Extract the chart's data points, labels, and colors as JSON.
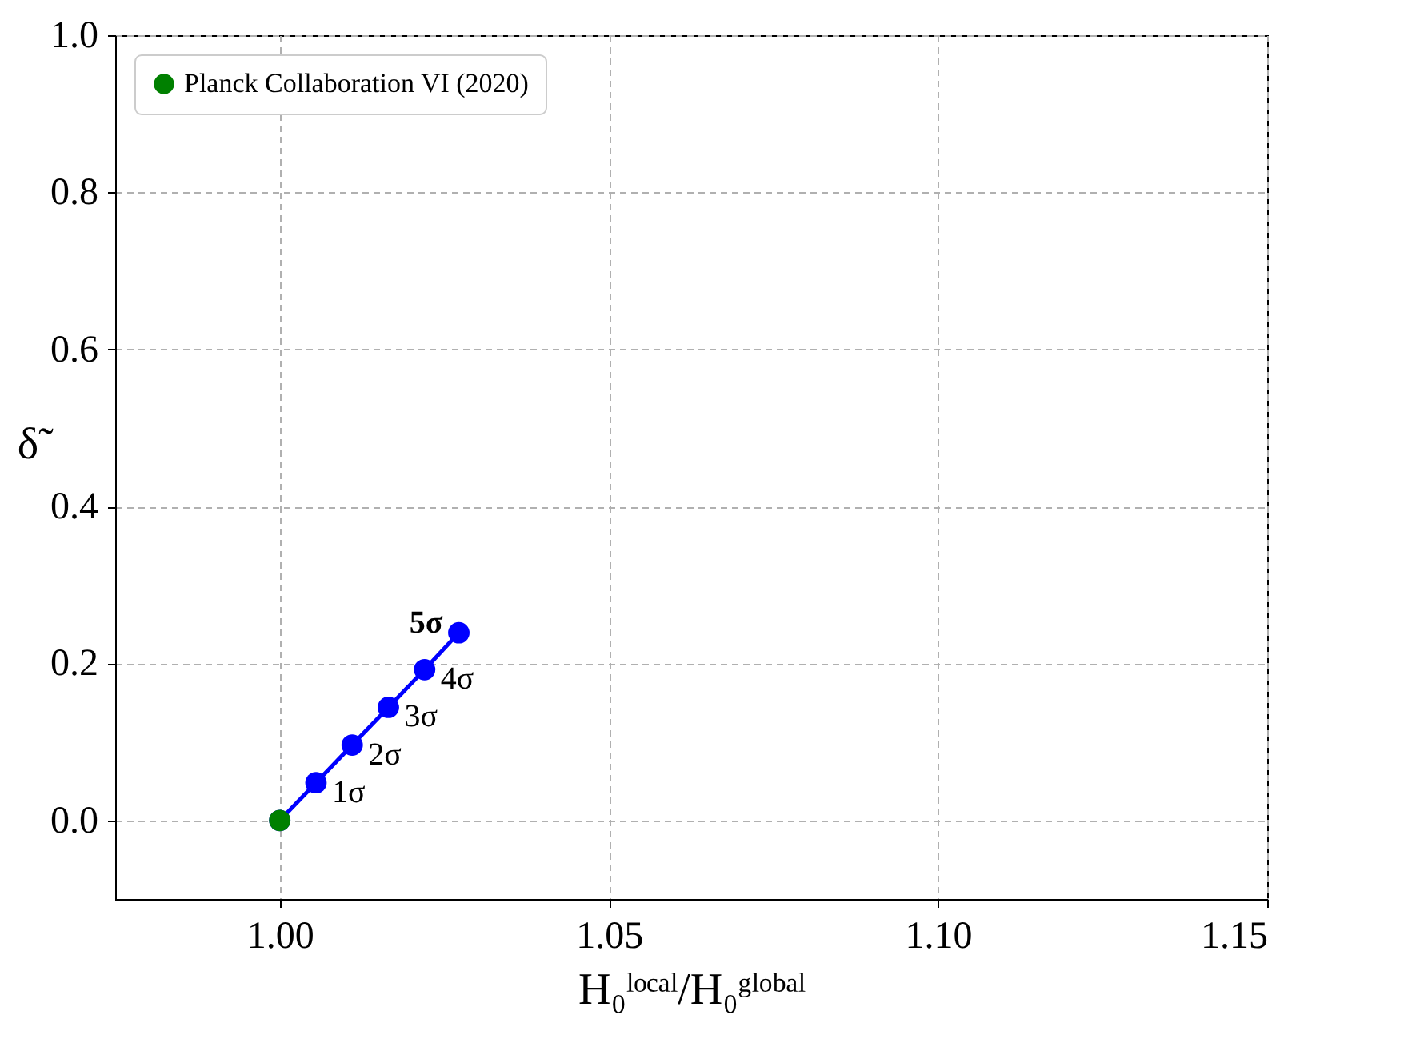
{
  "chart_data": {
    "type": "line",
    "xlabel": "H₀ˡᵒᶜᵃˡ/H₀ᵍˡᵒᵇᵃˡ",
    "ylabel": "δ̃",
    "xlim": [
      0.975,
      1.15
    ],
    "xticks": [
      {
        "value": 1,
        "label": "1.00"
      },
      1.05,
      {
        "value": 1.1,
        "label": "1.10"
      },
      1.15
    ],
    "ylim": [
      -0.1,
      1.0
    ],
    "yticks": [
      {
        "value": 0,
        "label": "0.0"
      },
      0.2,
      0.4,
      0.6,
      0.8,
      {
        "value": 1,
        "label": "1.0"
      }
    ],
    "grid": true,
    "legend": "top left",
    "marker": "circle",
    "series": [
      {
        "color": "#0000ff",
        "x": [
          1.0,
          1.0055,
          1.011,
          1.0165,
          1.022,
          1.0272
        ],
        "values": [
          0.0,
          0.048,
          0.096,
          0.144,
          0.192,
          0.239
        ]
      },
      {
        "type": "scatter",
        "name": "Planck Collaboration VI (2020)",
        "color": "#008000",
        "x": [
          1.0
        ],
        "values": [
          0.0
        ]
      }
    ],
    "annotations": [
      {
        "text": "1σ",
        "x": 1.0055,
        "y": 0.048
      },
      {
        "text": "2σ",
        "x": 1.011,
        "y": 0.096
      },
      {
        "text": "3σ",
        "x": 1.0165,
        "y": 0.144
      },
      {
        "text": "4σ",
        "x": 1.022,
        "y": 0.192
      },
      {
        "text": "5σ",
        "x": 1.0272,
        "y": 0.239
      }
    ]
  }
}
